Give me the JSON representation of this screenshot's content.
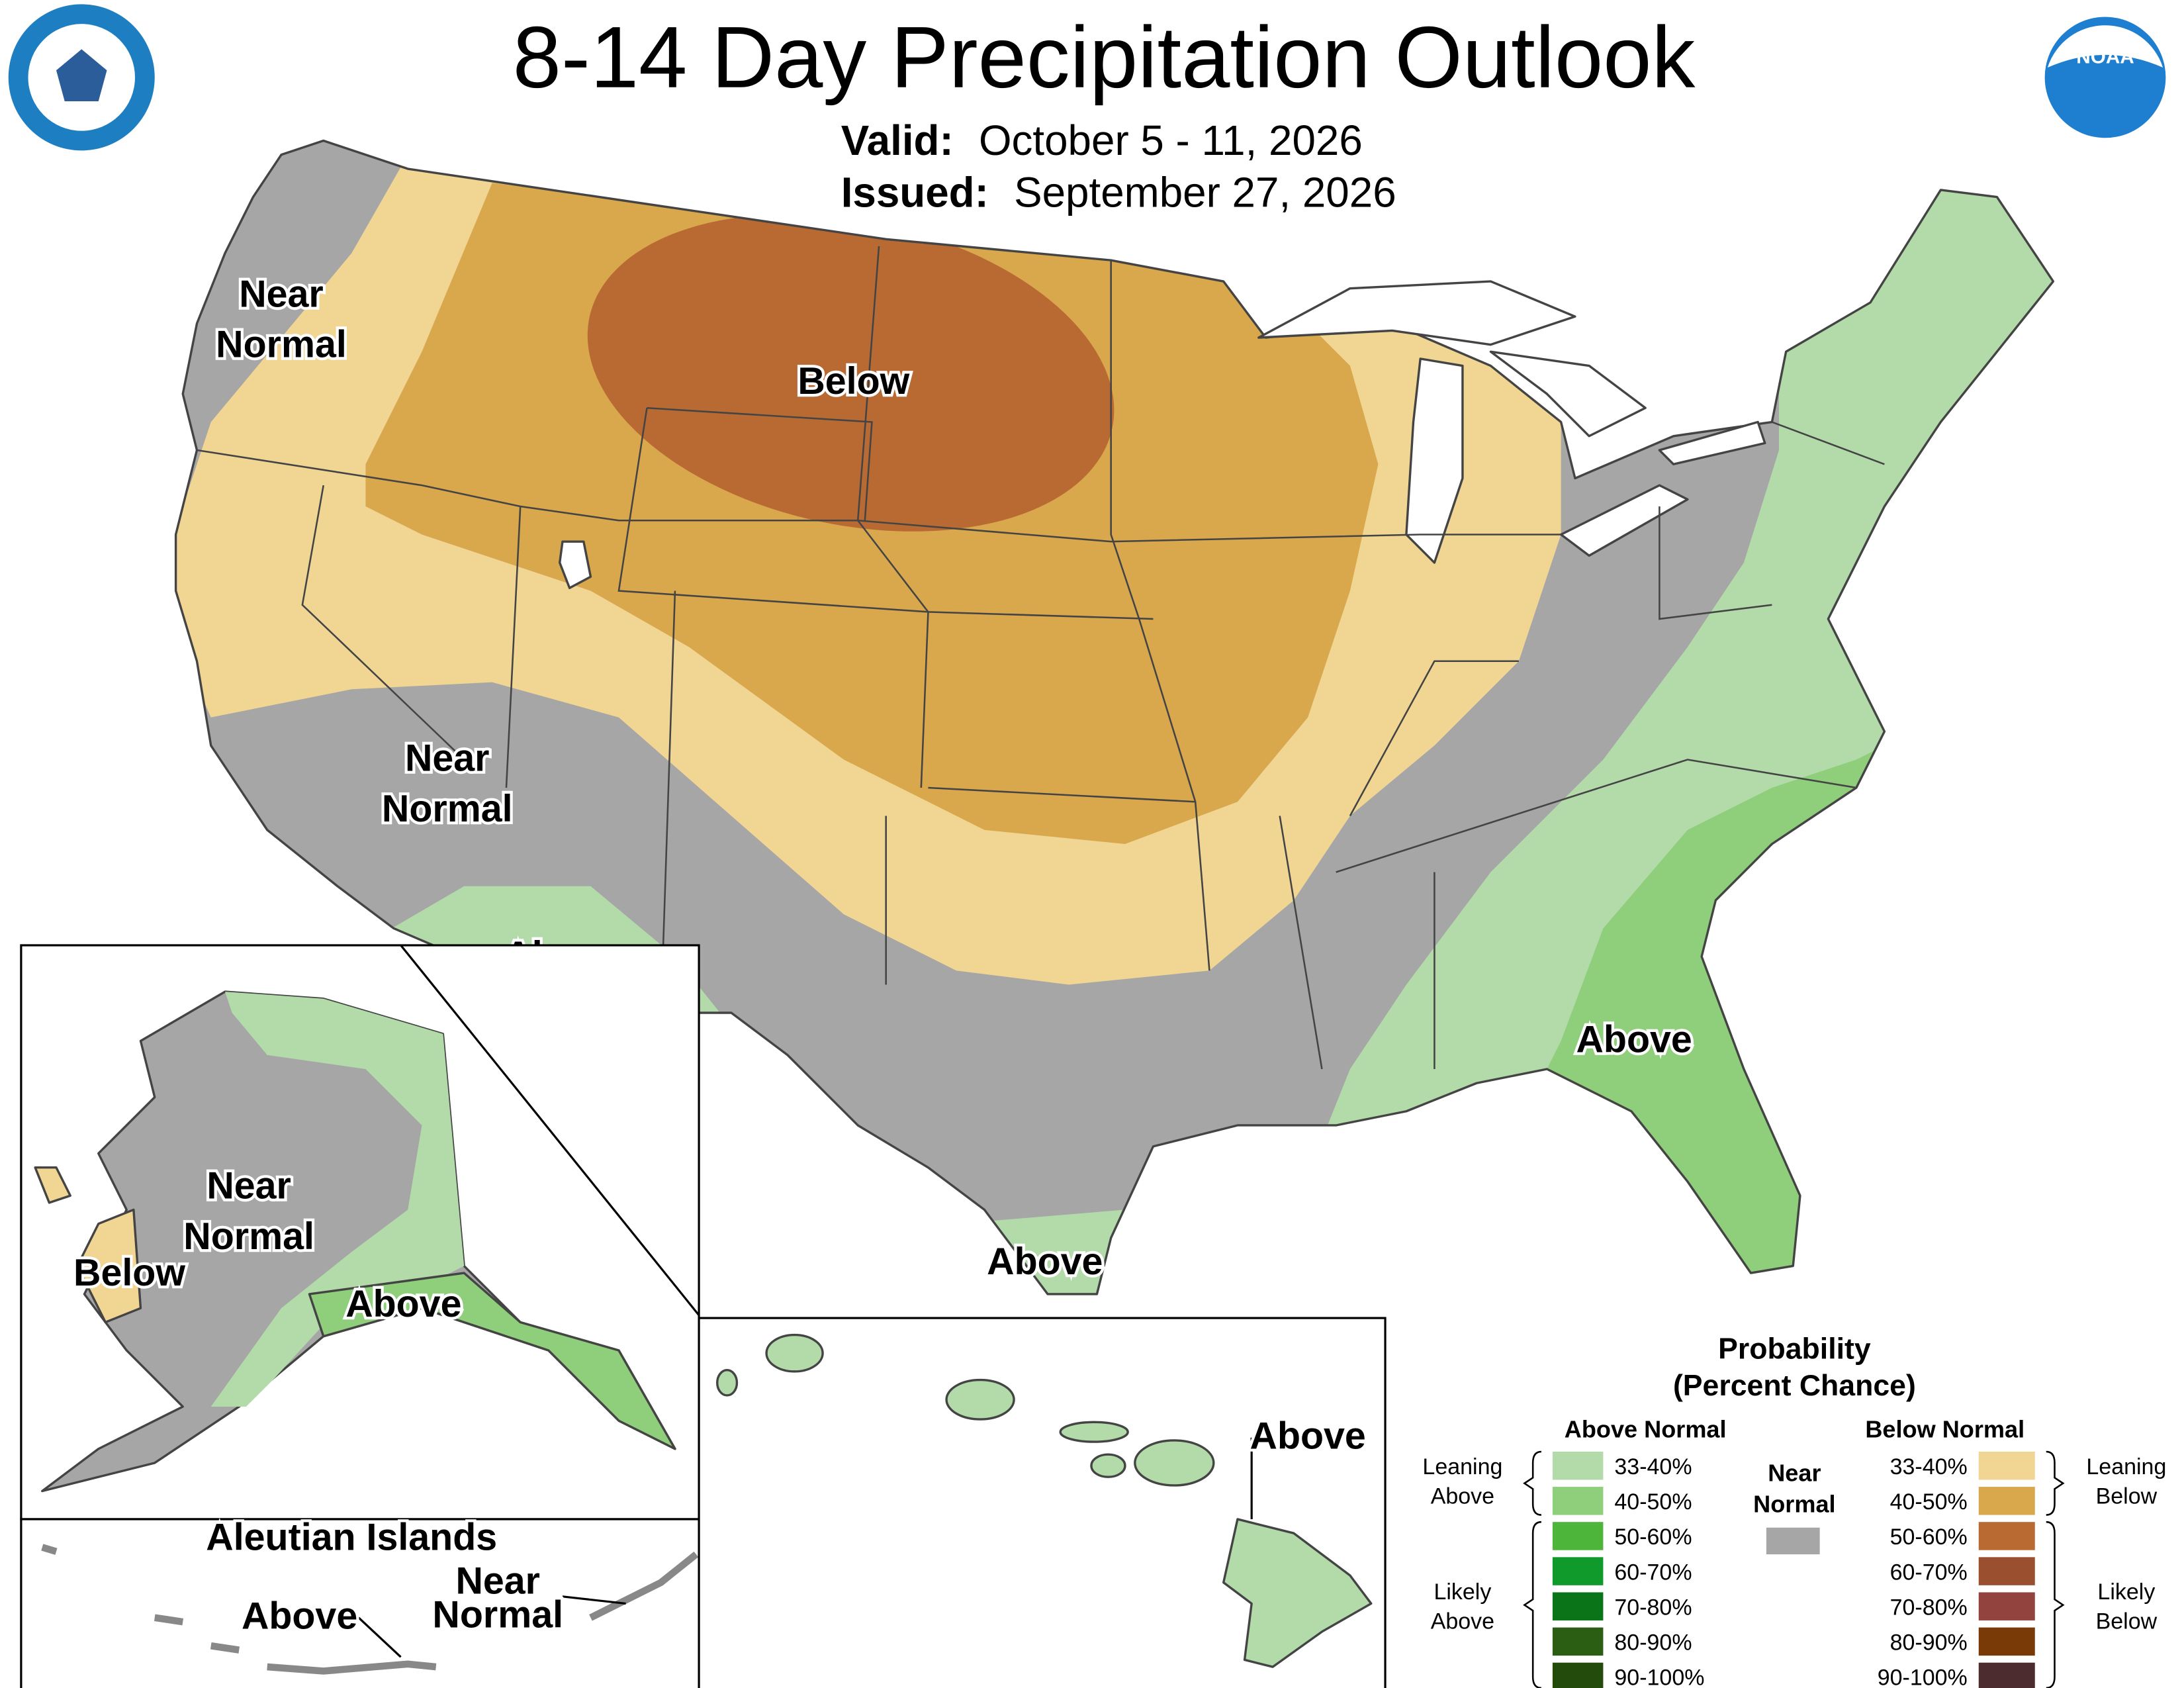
{
  "header": {
    "title": "8-14 Day Precipitation Outlook",
    "valid": {
      "label": "Valid:",
      "value": "October 5 - 11, 2026"
    },
    "issued": {
      "label": "Issued:",
      "value": "September 27, 2026"
    }
  },
  "map_labels": [
    {
      "lines": [
        "Near",
        "Normal"
      ]
    },
    {
      "lines": [
        "Below"
      ]
    },
    {
      "lines": [
        "Near",
        "Normal"
      ]
    },
    {
      "lines": [
        "Above"
      ]
    },
    {
      "lines": [
        "Above"
      ]
    },
    {
      "lines": [
        "Above"
      ]
    },
    {
      "lines": [
        "Near",
        "Normal"
      ]
    },
    {
      "lines": [
        "Below"
      ]
    },
    {
      "lines": [
        "Above"
      ]
    },
    {
      "lines": [
        "Above"
      ]
    },
    {
      "lines": [
        "Aleutian Islands"
      ]
    },
    {
      "lines": [
        "Above"
      ]
    },
    {
      "lines": [
        "Near",
        "Normal"
      ]
    }
  ],
  "legend": {
    "title": [
      "Probability",
      "(Percent Chance)"
    ],
    "above": {
      "heading": "Above Normal",
      "items": [
        {
          "range": "33-40%",
          "color": "#b3dbaa"
        },
        {
          "range": "40-50%",
          "color": "#8fce7a"
        },
        {
          "range": "50-60%",
          "color": "#4db53a"
        },
        {
          "range": "60-70%",
          "color": "#0f9a2b"
        },
        {
          "range": "70-80%",
          "color": "#0a7419"
        },
        {
          "range": "80-90%",
          "color": "#2b5e12"
        },
        {
          "range": "90-100%",
          "color": "#224b0c"
        }
      ]
    },
    "below": {
      "heading": "Below Normal",
      "items": [
        {
          "range": "33-40%",
          "color": "#f0d593"
        },
        {
          "range": "40-50%",
          "color": "#d9a74c"
        },
        {
          "range": "50-60%",
          "color": "#b96a33"
        },
        {
          "range": "60-70%",
          "color": "#9a4f2f"
        },
        {
          "range": "70-80%",
          "color": "#92433d"
        },
        {
          "range": "80-90%",
          "color": "#7a3a07"
        },
        {
          "range": "90-100%",
          "color": "#4c2c2e"
        }
      ]
    },
    "near": {
      "lines": [
        "Near",
        "Normal"
      ],
      "color": "#a6a6a6"
    },
    "leaning_above": [
      "Leaning",
      "Above"
    ],
    "likely_above": [
      "Likely",
      "Above"
    ],
    "leaning_below": [
      "Leaning",
      "Below"
    ],
    "likely_below": [
      "Likely",
      "Below"
    ]
  }
}
